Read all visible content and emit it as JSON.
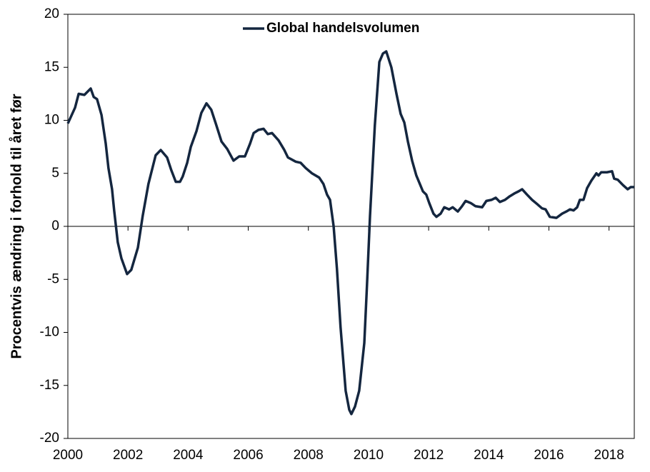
{
  "chart_data": {
    "type": "line",
    "y_label": "Procentvis ændring i forhold til året før",
    "xlim": [
      2000,
      2018.84
    ],
    "xticks": [
      2000,
      2002,
      2004,
      2006,
      2008,
      2010,
      2012,
      2014,
      2016,
      2018
    ],
    "ylim": [
      -20,
      20
    ],
    "yticks": [
      -20,
      -15,
      -10,
      -5,
      0,
      5,
      10,
      15,
      20
    ],
    "legend": "top",
    "series": [
      {
        "name": "Global handelsvolumen",
        "color": "#14263f",
        "x": [
          2000.0,
          2000.24,
          2000.36,
          2000.55,
          2000.76,
          2000.86,
          2000.97,
          2001.12,
          2001.26,
          2001.35,
          2001.47,
          2001.54,
          2001.66,
          2001.78,
          2001.97,
          2002.11,
          2002.33,
          2002.49,
          2002.68,
          2002.92,
          2003.09,
          2003.3,
          2003.44,
          2003.59,
          2003.73,
          2003.82,
          2003.97,
          2004.09,
          2004.28,
          2004.44,
          2004.61,
          2004.77,
          2004.92,
          2005.11,
          2005.3,
          2005.51,
          2005.7,
          2005.89,
          2006.06,
          2006.18,
          2006.34,
          2006.51,
          2006.65,
          2006.79,
          2007.01,
          2007.2,
          2007.32,
          2007.58,
          2007.74,
          2007.91,
          2008.12,
          2008.36,
          2008.5,
          2008.62,
          2008.72,
          2008.84,
          2008.95,
          2009.07,
          2009.24,
          2009.36,
          2009.43,
          2009.55,
          2009.69,
          2009.86,
          2009.95,
          2010.05,
          2010.21,
          2010.36,
          2010.48,
          2010.59,
          2010.76,
          2010.93,
          2011.07,
          2011.19,
          2011.31,
          2011.45,
          2011.59,
          2011.81,
          2011.92,
          2012.02,
          2012.16,
          2012.26,
          2012.4,
          2012.52,
          2012.68,
          2012.8,
          2012.97,
          2013.11,
          2013.23,
          2013.4,
          2013.56,
          2013.78,
          2013.92,
          2014.09,
          2014.23,
          2014.37,
          2014.54,
          2014.68,
          2014.85,
          2014.99,
          2015.11,
          2015.27,
          2015.44,
          2015.61,
          2015.77,
          2015.89,
          2016.03,
          2016.25,
          2016.44,
          2016.58,
          2016.7,
          2016.82,
          2016.94,
          2017.03,
          2017.15,
          2017.27,
          2017.41,
          2017.58,
          2017.65,
          2017.74,
          2017.93,
          2018.1,
          2018.17,
          2018.29,
          2018.46,
          2018.62,
          2018.72,
          2018.84
        ],
        "values": [
          9.7,
          11.2,
          12.5,
          12.4,
          13.0,
          12.2,
          12.0,
          10.5,
          7.8,
          5.5,
          3.5,
          1.5,
          -1.5,
          -3.0,
          -4.5,
          -4.1,
          -2.0,
          1.0,
          4.0,
          6.7,
          7.2,
          6.5,
          5.3,
          4.2,
          4.2,
          4.7,
          6.0,
          7.5,
          9.0,
          10.7,
          11.6,
          11.0,
          9.7,
          8.0,
          7.3,
          6.2,
          6.6,
          6.6,
          7.8,
          8.8,
          9.1,
          9.2,
          8.7,
          8.8,
          8.1,
          7.2,
          6.5,
          6.1,
          6.0,
          5.5,
          5.0,
          4.6,
          4.0,
          3.0,
          2.5,
          0.0,
          -4.0,
          -9.5,
          -15.5,
          -17.3,
          -17.7,
          -17.0,
          -15.5,
          -11.0,
          -5.5,
          1.0,
          9.5,
          15.5,
          16.3,
          16.5,
          15.0,
          12.5,
          10.6,
          9.8,
          8.0,
          6.2,
          4.8,
          3.3,
          3.0,
          2.2,
          1.2,
          0.9,
          1.2,
          1.8,
          1.6,
          1.8,
          1.4,
          1.9,
          2.4,
          2.2,
          1.9,
          1.8,
          2.4,
          2.5,
          2.7,
          2.3,
          2.5,
          2.8,
          3.1,
          3.3,
          3.5,
          3.0,
          2.5,
          2.1,
          1.7,
          1.6,
          0.9,
          0.8,
          1.2,
          1.4,
          1.6,
          1.5,
          1.8,
          2.5,
          2.5,
          3.6,
          4.3,
          5.0,
          4.8,
          5.1,
          5.1,
          5.2,
          4.5,
          4.4,
          3.9,
          3.5,
          3.7,
          3.7
        ]
      }
    ]
  }
}
